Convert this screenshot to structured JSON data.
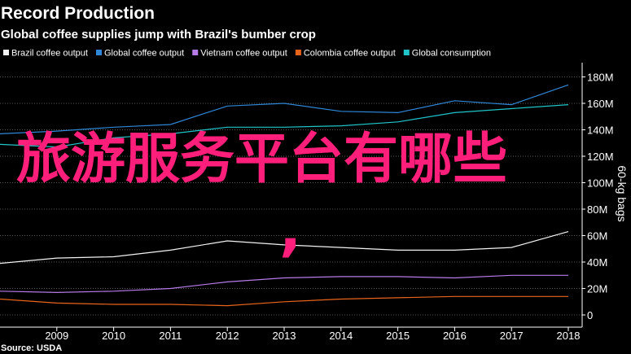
{
  "chart_data": {
    "type": "line",
    "title": "Record Production",
    "subtitle": "Global coffee supplies jump with Brazil's bumber crop",
    "source": "Source: USDA",
    "ylabel": "60-kg bags",
    "xlabel": "",
    "y_axis_position": "right",
    "legend_position": "top",
    "grid": "horizontal dashed",
    "x": [
      2008,
      2009,
      2010,
      2011,
      2012,
      2013,
      2014,
      2015,
      2016,
      2017,
      2018
    ],
    "xlim": [
      2008,
      2018
    ],
    "x_ticks": [
      "2009",
      "2010",
      "2011",
      "2012",
      "2013",
      "2014",
      "2015",
      "2016",
      "2017",
      "2018"
    ],
    "ylim": [
      -4,
      188
    ],
    "y_ticks": [
      {
        "value": 0,
        "label": "0"
      },
      {
        "value": 20,
        "label": "20M"
      },
      {
        "value": 40,
        "label": "40M"
      },
      {
        "value": 60,
        "label": "60M"
      },
      {
        "value": 80,
        "label": "80M"
      },
      {
        "value": 100,
        "label": "100M"
      },
      {
        "value": 120,
        "label": "120M"
      },
      {
        "value": 140,
        "label": "140M"
      },
      {
        "value": 160,
        "label": "160M"
      },
      {
        "value": 180,
        "label": "180M"
      }
    ],
    "series": [
      {
        "name": "Brazil coffee output",
        "color": "#f2f2f2",
        "values": [
          39,
          43,
          44,
          49,
          56,
          53,
          51,
          49,
          49,
          51,
          63
        ]
      },
      {
        "name": "Global coffee output",
        "color": "#2f86d6",
        "values": [
          137,
          139,
          142,
          144,
          158,
          160,
          154,
          153,
          162,
          159,
          174
        ]
      },
      {
        "name": "Vietnam coffee output",
        "color": "#b57be6",
        "values": [
          18,
          17,
          18,
          20,
          25,
          28,
          29,
          29,
          28,
          30,
          30
        ]
      },
      {
        "name": "Colombia coffee output",
        "color": "#e8641b",
        "values": [
          12,
          9,
          8,
          8,
          7,
          10,
          12,
          13,
          14,
          14,
          14
        ]
      },
      {
        "name": "Global consumption",
        "color": "#1ec4c8",
        "values": [
          129,
          127,
          134,
          137,
          142,
          142,
          143,
          146,
          153,
          156,
          159
        ]
      }
    ]
  },
  "overlay": {
    "text": "旅游服务平台有哪些",
    "mark": ",",
    "color": "#ff1f7a"
  }
}
